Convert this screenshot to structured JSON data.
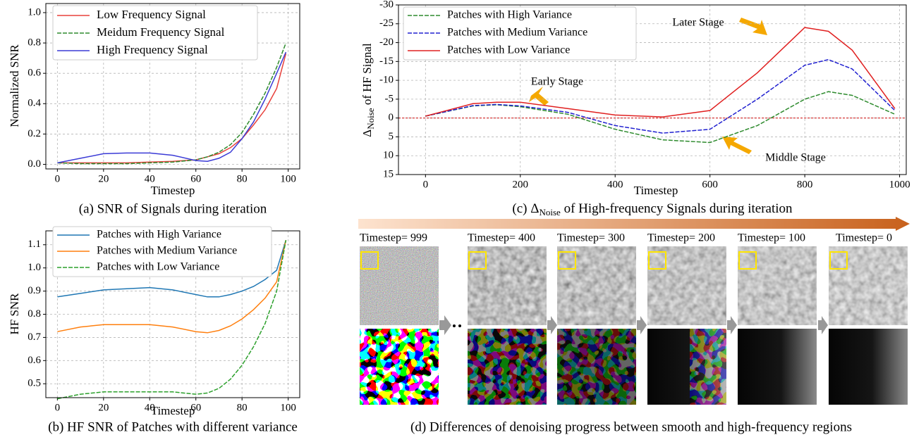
{
  "chart_data": [
    {
      "type": "line",
      "caption": "(a) SNR of Signals during iteration",
      "xlabel": "Timestep",
      "ylabel": "Normalized SNR",
      "x": [
        0,
        10,
        20,
        30,
        40,
        50,
        60,
        65,
        70,
        75,
        80,
        85,
        90,
        95,
        99
      ],
      "xlim": [
        -5,
        105
      ],
      "ylim": [
        -0.03,
        1.06
      ],
      "xticks": [
        0,
        20,
        40,
        60,
        80,
        100
      ],
      "yticks": [
        {
          "value": 0,
          "label": "0.0"
        },
        0.2,
        0.4,
        0.6,
        0.8,
        {
          "value": 1,
          "label": "1.0"
        }
      ],
      "grid": true,
      "legend": "upper left",
      "series": [
        {
          "name": "Low Frequency Signal",
          "color": "#e8413c",
          "dash": false,
          "values": [
            0.01,
            0.01,
            0.01,
            0.01,
            0.015,
            0.02,
            0.03,
            0.05,
            0.07,
            0.11,
            0.17,
            0.26,
            0.36,
            0.5,
            0.73
          ]
        },
        {
          "name": "Meidum Frequency Signal",
          "color": "#2e8b2e",
          "dash": true,
          "values": [
            0.01,
            0.005,
            0.005,
            0.005,
            0.01,
            0.015,
            0.03,
            0.05,
            0.08,
            0.13,
            0.21,
            0.33,
            0.47,
            0.64,
            0.8
          ]
        },
        {
          "name": "High Frequency Signal",
          "color": "#3b3bd6",
          "dash": false,
          "values": [
            0.01,
            0.04,
            0.07,
            0.075,
            0.075,
            0.06,
            0.025,
            0.02,
            0.04,
            0.08,
            0.17,
            0.28,
            0.43,
            0.6,
            0.74
          ]
        }
      ]
    },
    {
      "type": "line",
      "caption": "(b) HF SNR of Patches with different variance",
      "xlabel": "Timestep",
      "ylabel": "HF SNR",
      "x": [
        0,
        10,
        20,
        30,
        40,
        50,
        60,
        65,
        70,
        75,
        80,
        85,
        90,
        95,
        99
      ],
      "xlim": [
        -5,
        105
      ],
      "ylim": [
        0.44,
        1.16
      ],
      "xticks": [
        0,
        20,
        40,
        60,
        80,
        100
      ],
      "yticks": [
        0.5,
        0.6,
        0.7,
        0.8,
        0.9,
        {
          "value": 1,
          "label": "1.0"
        },
        1.1
      ],
      "grid": true,
      "legend": "upper left",
      "series": [
        {
          "name": "Patches with High Variance",
          "color": "#1f77b4",
          "dash": false,
          "values": [
            0.875,
            0.89,
            0.905,
            0.91,
            0.915,
            0.905,
            0.885,
            0.875,
            0.875,
            0.885,
            0.9,
            0.92,
            0.95,
            0.99,
            1.12
          ]
        },
        {
          "name": "Patches with Medium Variance",
          "color": "#ff7f0e",
          "dash": false,
          "values": [
            0.725,
            0.745,
            0.755,
            0.755,
            0.755,
            0.745,
            0.725,
            0.72,
            0.73,
            0.75,
            0.78,
            0.82,
            0.87,
            0.94,
            1.12
          ]
        },
        {
          "name": "Patches with Low Variance",
          "color": "#2ca02c",
          "dash": true,
          "values": [
            0.435,
            0.455,
            0.465,
            0.465,
            0.465,
            0.465,
            0.455,
            0.46,
            0.48,
            0.52,
            0.58,
            0.66,
            0.76,
            0.9,
            1.12
          ]
        }
      ]
    },
    {
      "type": "line",
      "caption": {
        "prefix": "(c) Δ",
        "sub": "Noise",
        "rest": " of High-frequency Signals during iteration"
      },
      "xlabel": "Timestep",
      "ylabel": {
        "prefix": "Δ",
        "sub": "Noise",
        "rest": " of HF Signal"
      },
      "x": [
        0,
        100,
        150,
        200,
        300,
        400,
        500,
        600,
        700,
        800,
        850,
        900,
        990
      ],
      "xlim": [
        -57,
        1014
      ],
      "ylim": [
        15,
        -30
      ],
      "xticks": [
        0,
        200,
        400,
        600,
        800,
        1000
      ],
      "yticks": [
        -30,
        -25,
        -20,
        -15,
        -10,
        -5,
        0,
        5,
        10,
        15
      ],
      "grid": true,
      "legend": "upper left",
      "hline": 0,
      "hline_color": "#d62728",
      "annotations": [
        "Early Stage",
        "Later Stage",
        "Middle Stage"
      ],
      "series": [
        {
          "name": "Patches with High Variance",
          "color": "#2e8b2e",
          "dash": true,
          "values": [
            -0.5,
            -3.2,
            -3.5,
            -3,
            -1,
            3,
            5.8,
            6.5,
            2,
            -5,
            -7,
            -6,
            -1
          ]
        },
        {
          "name": "Patches with Medium Variance",
          "color": "#2020d0",
          "dash": true,
          "values": [
            -0.5,
            -3.3,
            -3.6,
            -3.2,
            -1.5,
            2,
            4,
            3,
            -5,
            -14,
            -15.5,
            -13,
            -2
          ]
        },
        {
          "name": "Patches with Low Variance",
          "color": "#e02020",
          "dash": false,
          "values": [
            -0.5,
            -3.8,
            -4.2,
            -4.2,
            -2.5,
            -0.8,
            -0.3,
            -2,
            -12,
            -24,
            -23,
            -18,
            -2.5
          ]
        }
      ]
    }
  ],
  "panel_d": {
    "timesteps": [
      "Timestep= 999",
      "Timestep= 400",
      "Timestep= 300",
      "Timestep= 200",
      "Timestep= 100",
      "Timestep= 0"
    ],
    "caption": "(d) Differences of denoising progress between smooth and high-frequency regions"
  }
}
